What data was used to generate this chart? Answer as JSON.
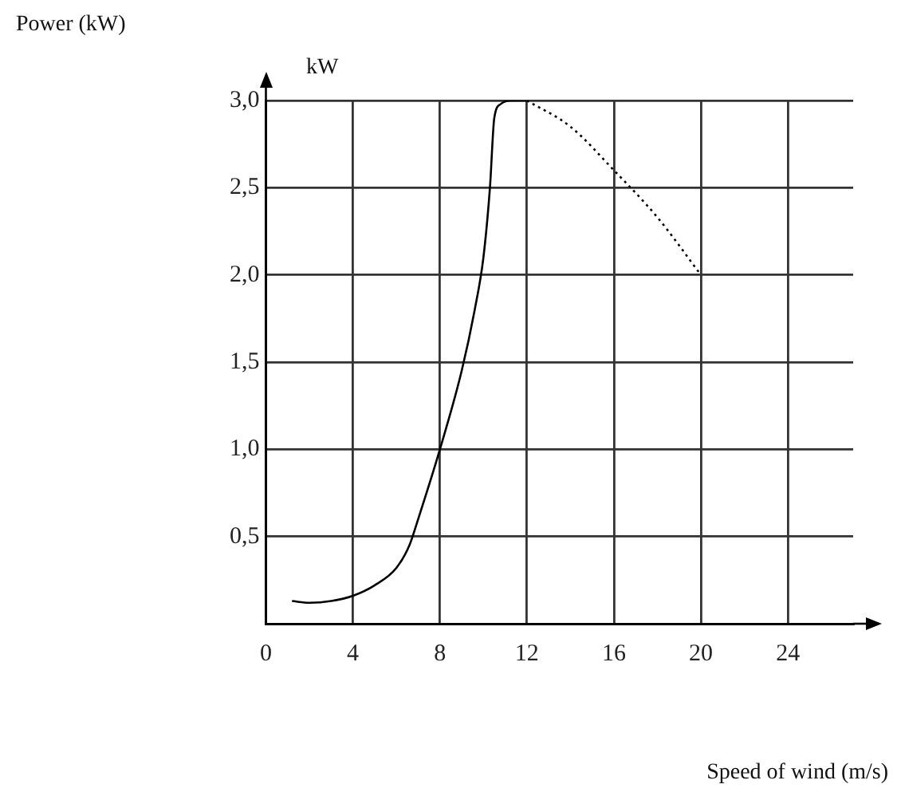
{
  "chart_data": {
    "type": "line",
    "xlabel": "Speed of wind (m/s)",
    "ylabel": "kW",
    "annotations": [
      "Power (kW)"
    ],
    "xlim": [
      0,
      27
    ],
    "xticks": [
      0,
      4,
      8,
      12,
      16,
      20,
      24
    ],
    "ylim": [
      0,
      3
    ],
    "yticks": [
      {
        "value": 0.5,
        "label": "0,5"
      },
      {
        "value": 1,
        "label": "1,0"
      },
      {
        "value": 1.5,
        "label": "1,5"
      },
      {
        "value": 2,
        "label": "2,0"
      },
      {
        "value": 2.5,
        "label": "2,5"
      },
      {
        "value": 3,
        "label": "3,0"
      }
    ],
    "grid": true,
    "legend": false,
    "marker": "none",
    "series": [
      {
        "color": "#000000",
        "line_style": "solid",
        "x": [
          1.2,
          2,
          3,
          4,
          5,
          6,
          6.6,
          7,
          8,
          9,
          9.6,
          10,
          10.3,
          10.5,
          10.8,
          11.3,
          12
        ],
        "values": [
          0.13,
          0.12,
          0.13,
          0.16,
          0.22,
          0.32,
          0.45,
          0.6,
          1.0,
          1.45,
          1.8,
          2.1,
          2.5,
          2.9,
          2.98,
          3.0,
          3.0
        ]
      },
      {
        "color": "#000000",
        "line_style": "dotted",
        "x": [
          12,
          14,
          16,
          18,
          20
        ],
        "values": [
          3.0,
          2.85,
          2.6,
          2.33,
          2.0
        ]
      }
    ]
  }
}
